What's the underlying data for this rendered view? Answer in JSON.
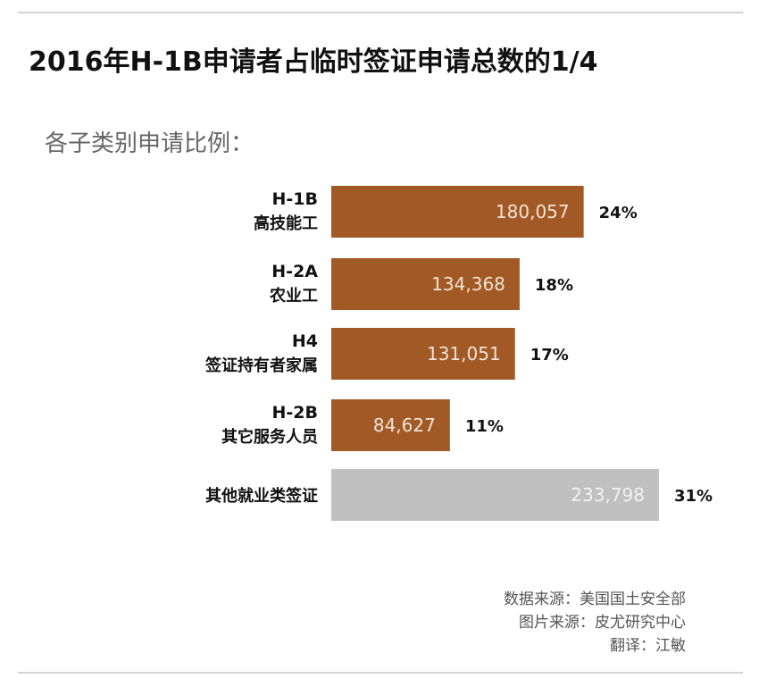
{
  "title": "2016年H-1B申请者占临时签证申请总数的1/4",
  "subtitle": "各子类别申请比例：",
  "credits": {
    "source": "数据来源：美国国土安全部",
    "image_source": "图片来源：皮尤研究中心",
    "translator": "翻译：江敏"
  },
  "colors": {
    "visa_bar": "#a15a26",
    "other_bar": "#c0c0c0"
  },
  "chart_data": {
    "type": "bar",
    "orientation": "horizontal",
    "categories": [
      {
        "code": "H-1B",
        "name": "高技能工",
        "value": 180057,
        "label": "180,057",
        "percent": "24%"
      },
      {
        "code": "H-2A",
        "name": "农业工",
        "value": 134368,
        "label": "134,368",
        "percent": "18%"
      },
      {
        "code": "H4",
        "name": "签证持有者家属",
        "value": 131051,
        "label": "131,051",
        "percent": "17%"
      },
      {
        "code": "H-2B",
        "name": "其它服务人员",
        "value": 84627,
        "label": "84,627",
        "percent": "11%"
      },
      {
        "code": "",
        "name": "其他就业类签证",
        "value": 233798,
        "label": "233,798",
        "percent": "31%"
      }
    ],
    "xlim": [
      0,
      233798
    ],
    "grid": false,
    "legend": "none"
  }
}
